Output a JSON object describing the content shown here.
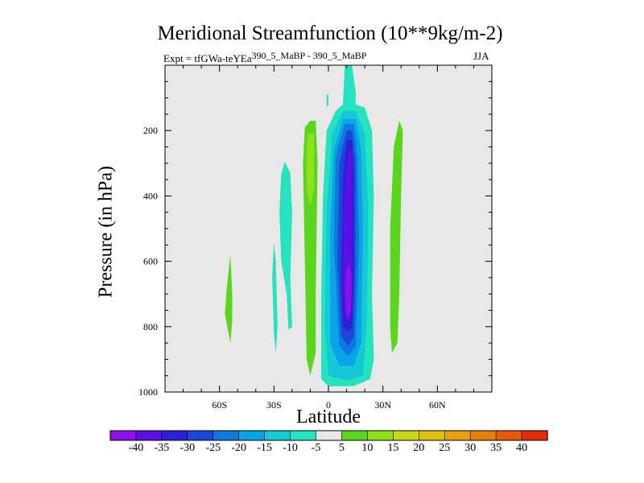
{
  "chart_data": {
    "type": "contour",
    "title": "Meridional Streamfunction (10**9kg/m-2)",
    "subtitle_left": "Expt = tfGWa-teYEa",
    "subtitle_center": "390_5_MaBP - 390_5_MaBP",
    "subtitle_right": "JJA",
    "xlabel": "Latitude",
    "ylabel": "Pressure (in hPa)",
    "x_ticks": [
      -60,
      -30,
      0,
      30,
      60
    ],
    "x_tick_labels": [
      "60S",
      "30S",
      "0",
      "30N",
      "60N"
    ],
    "xlim": [
      -90,
      90
    ],
    "y_ticks": [
      200,
      400,
      600,
      800,
      1000
    ],
    "y_tick_labels": [
      "200",
      "400",
      "600",
      "800",
      "1000"
    ],
    "ylim": [
      1000,
      0
    ],
    "y_inverted": true,
    "background_missing": "#e8e8e8",
    "colorbar": {
      "labels": [
        "-40",
        "-35",
        "-30",
        "-25",
        "-20",
        "-15",
        "-10",
        "-5",
        "5",
        "10",
        "15",
        "20",
        "25",
        "30",
        "35",
        "40"
      ],
      "colors": [
        "#8c10ea",
        "#5c0ee6",
        "#2d1fd8",
        "#1c46d8",
        "#0d78e0",
        "#0aa3e6",
        "#14c8d8",
        "#26e3c0",
        "#e8e8e8",
        "#5ad61c",
        "#8ee01c",
        "#c8d816",
        "#e0c210",
        "#e6a10c",
        "#e6800a",
        "#e55b08",
        "#e02d06"
      ]
    },
    "features": [
      {
        "name": "main-negative-cell",
        "lat_range": [
          -5,
          25
        ],
        "p_range": [
          0,
          980
        ],
        "min_value": -40,
        "center_lat": 12,
        "center_p": 650
      },
      {
        "name": "positive-band-nh-midlat",
        "lat_range": [
          33,
          41
        ],
        "p_range": [
          175,
          880
        ],
        "value": 10
      },
      {
        "name": "positive-band-sh-subtropics",
        "lat_range": [
          -15,
          -7
        ],
        "p_range": [
          170,
          950
        ],
        "value": 10
      },
      {
        "name": "negative-band-sh-1",
        "lat_range": [
          -27,
          -20
        ],
        "p_range": [
          295,
          810
        ],
        "value": -5
      },
      {
        "name": "negative-band-sh-2",
        "lat_range": [
          -31,
          -28
        ],
        "p_range": [
          540,
          880
        ],
        "value": -5
      },
      {
        "name": "positive-band-sh-midlat",
        "lat_range": [
          -57,
          -53
        ],
        "p_range": [
          580,
          850
        ],
        "value": 10
      }
    ]
  }
}
